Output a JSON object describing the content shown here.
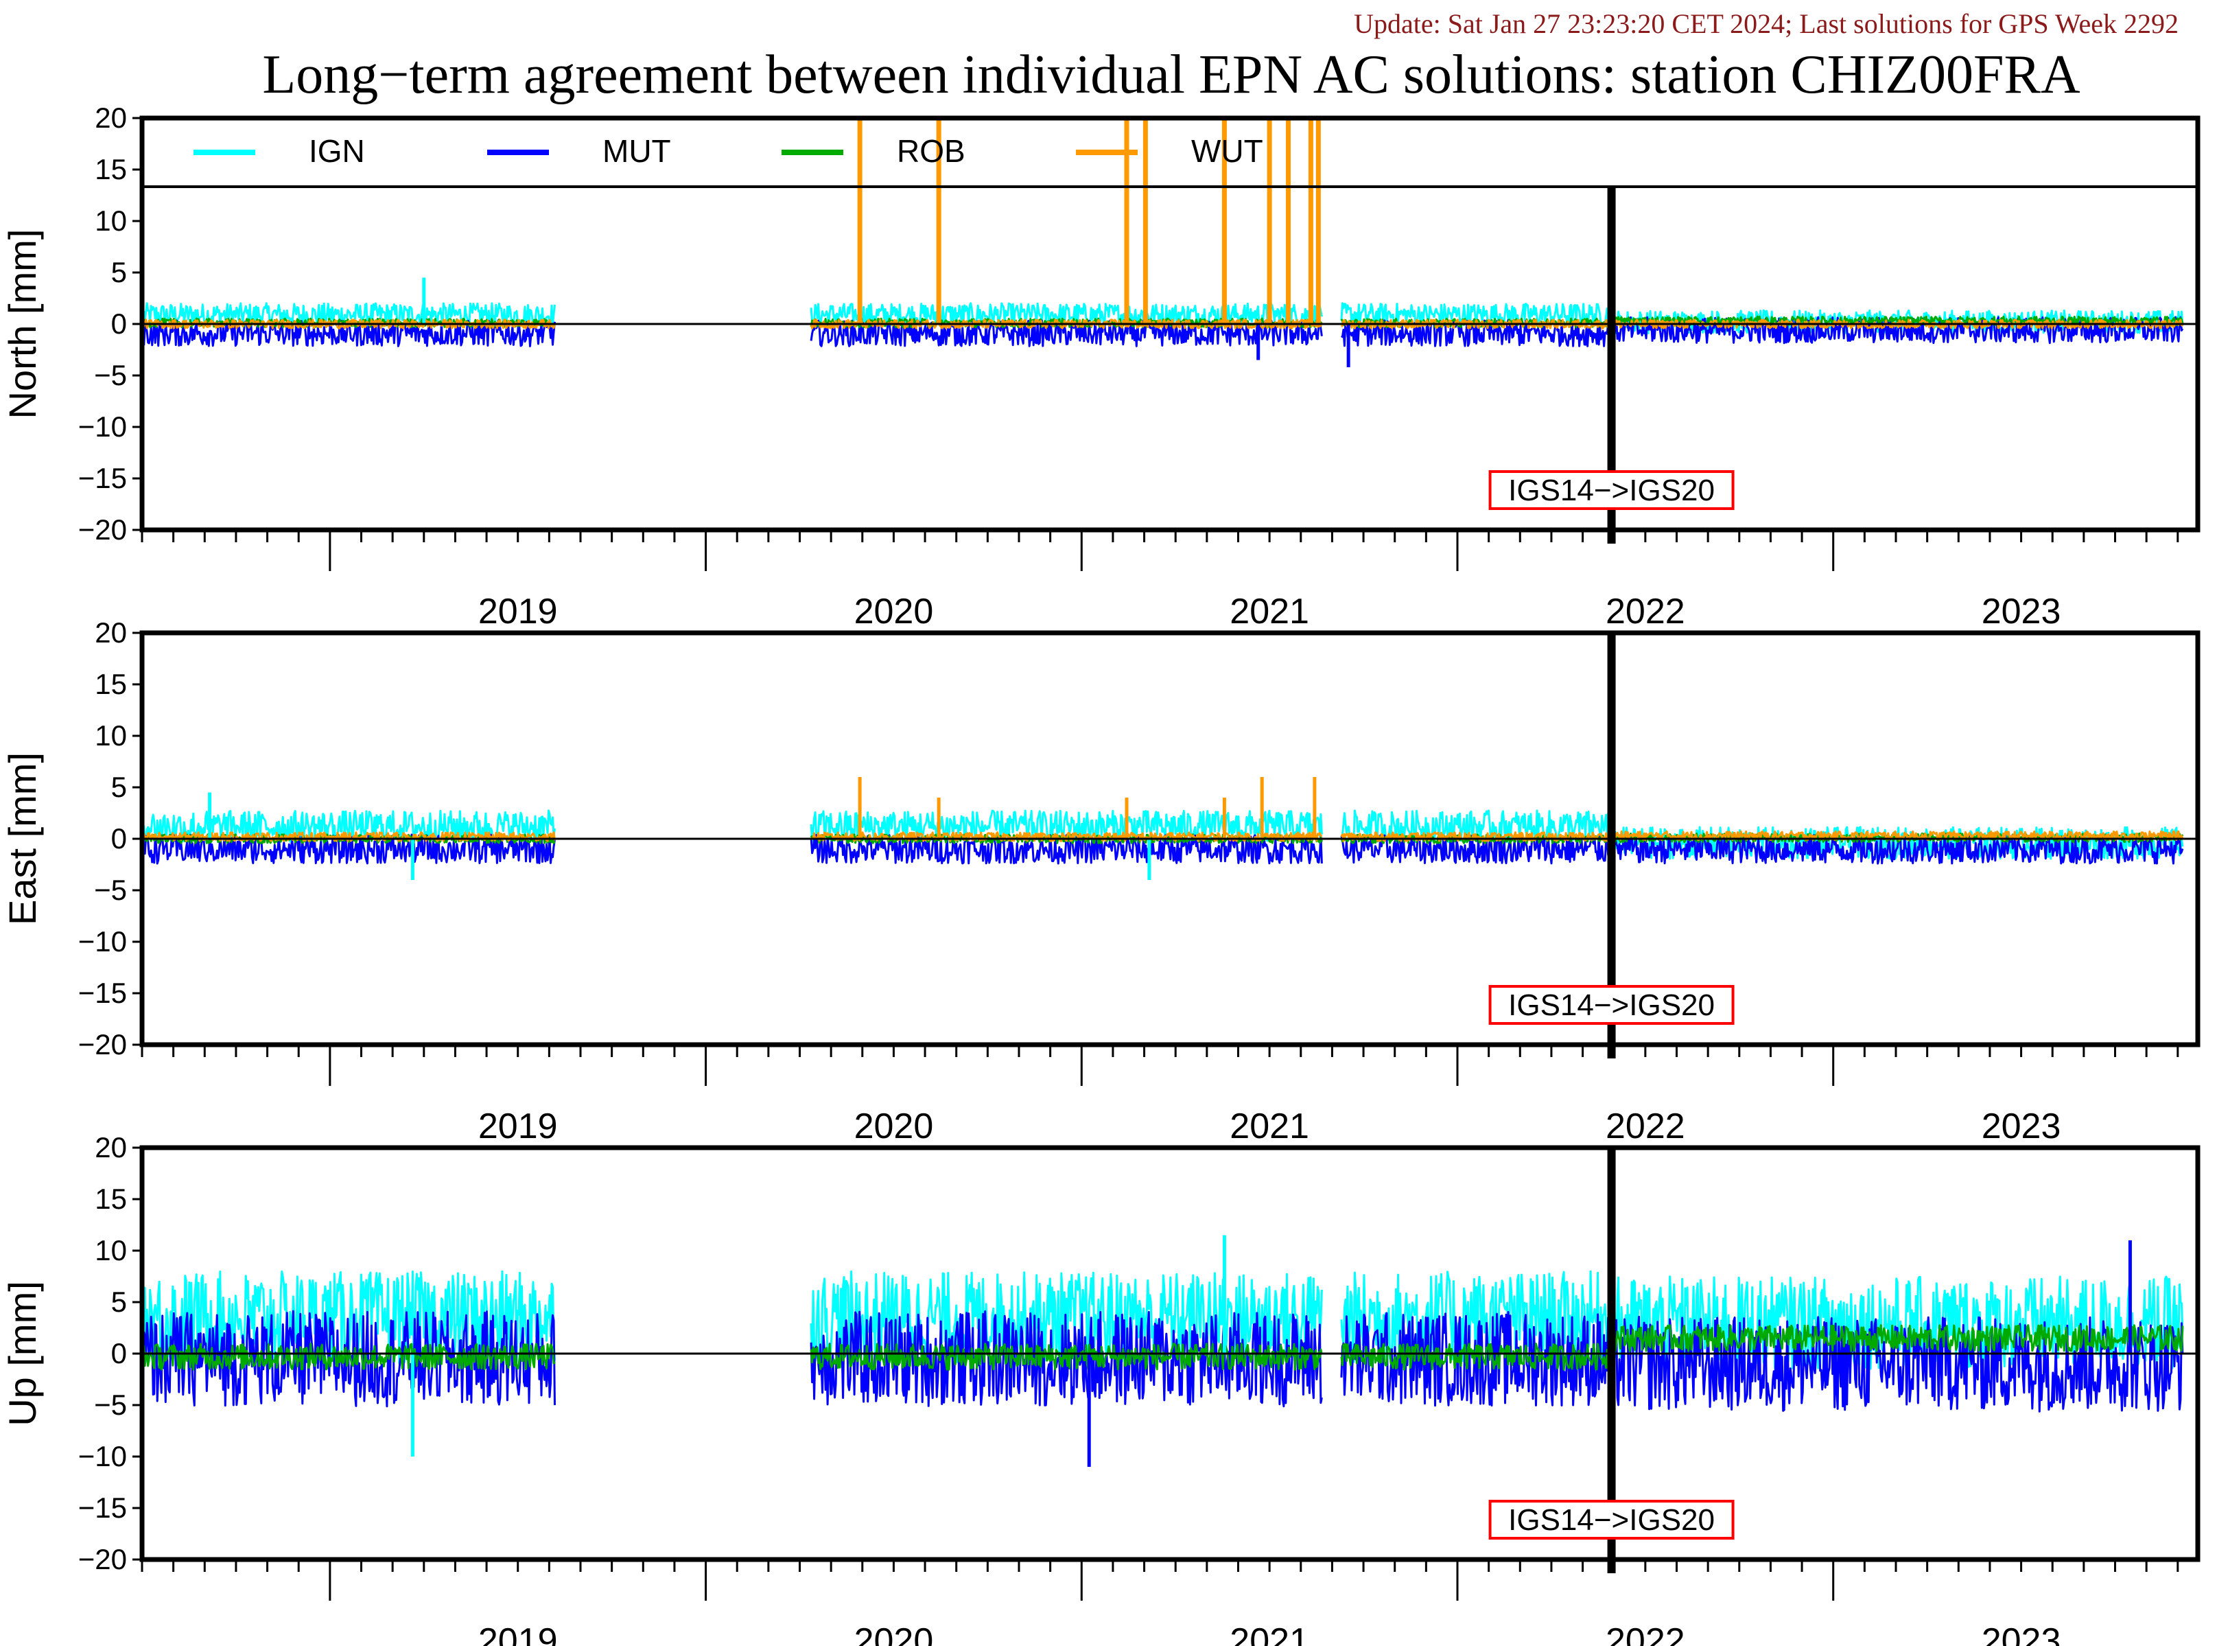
{
  "header": {
    "update": "Update: Sat Jan 27 23:23:20 CET 2024; Last solutions for GPS Week 2292",
    "update_color": "#8b1a1a",
    "title": "Long−term agreement between individual EPN AC solutions: station CHIZ00FRA"
  },
  "chart_data": {
    "type": "line",
    "x_axis": {
      "range": [
        2018.5,
        2023.97
      ],
      "year_labels": [
        "2019",
        "2020",
        "2021",
        "2022",
        "2023"
      ]
    },
    "legend": {
      "placement": "top-left inside north panel",
      "entries": [
        {
          "name": "IGN",
          "color": "#00ffff"
        },
        {
          "name": "MUT",
          "color": "#0000ff"
        },
        {
          "name": "ROB",
          "color": "#00aa00"
        },
        {
          "name": "WUT",
          "color": "#ff9900"
        }
      ]
    },
    "reference_change": {
      "label": "IGS14−>IGS20",
      "label_color": "#ff0000",
      "epoch": 2022.41
    },
    "data_gaps": [
      [
        2019.6,
        2020.28
      ],
      [
        2021.64,
        2021.69
      ]
    ],
    "panels": [
      {
        "ylabel": "North [mm]",
        "ylim": [
          -20,
          20
        ],
        "yticks": [
          "20",
          "15",
          "10",
          "5",
          "0",
          "−5",
          "−10",
          "−15",
          "−20"
        ],
        "series": [
          {
            "name": "IGN",
            "offset": 0.9,
            "noise": 0.8,
            "offset_after": 0.2
          },
          {
            "name": "MUT",
            "offset": -0.9,
            "noise": 0.9,
            "offset_after": -0.6
          },
          {
            "name": "ROB",
            "offset": 0.1,
            "noise": 0.3,
            "offset_after": 0.3
          },
          {
            "name": "WUT",
            "offset": 0.0,
            "noise": 0.3,
            "offset_after": 0.0
          }
        ],
        "spikes": [
          {
            "series": "WUT",
            "x": 2020.41,
            "y": 20
          },
          {
            "series": "WUT",
            "x": 2020.62,
            "y": 20
          },
          {
            "series": "WUT",
            "x": 2021.12,
            "y": 20
          },
          {
            "series": "WUT",
            "x": 2021.17,
            "y": 20
          },
          {
            "series": "WUT",
            "x": 2021.38,
            "y": 20
          },
          {
            "series": "WUT",
            "x": 2021.5,
            "y": 20
          },
          {
            "series": "WUT",
            "x": 2021.55,
            "y": 20
          },
          {
            "series": "WUT",
            "x": 2021.61,
            "y": 20
          },
          {
            "series": "WUT",
            "x": 2021.63,
            "y": 20
          },
          {
            "series": "IGN",
            "x": 2019.25,
            "y": 4.5
          },
          {
            "series": "MUT",
            "x": 2021.47,
            "y": -3.5
          },
          {
            "series": "MUT",
            "x": 2021.71,
            "y": -4.2
          }
        ]
      },
      {
        "ylabel": "East [mm]",
        "ylim": [
          -20,
          20
        ],
        "yticks": [
          "20",
          "15",
          "10",
          "5",
          "0",
          "−5",
          "−10",
          "−15",
          "−20"
        ],
        "series": [
          {
            "name": "IGN",
            "offset": 1.2,
            "noise": 1.1,
            "offset_after": -0.4
          },
          {
            "name": "MUT",
            "offset": -1.0,
            "noise": 1.0,
            "offset_after": -1.0
          },
          {
            "name": "ROB",
            "offset": 0.0,
            "noise": 0.3,
            "offset_after": 0.1
          },
          {
            "name": "WUT",
            "offset": 0.2,
            "noise": 0.3,
            "offset_after": 0.3
          }
        ],
        "spikes": [
          {
            "series": "WUT",
            "x": 2020.41,
            "y": 6
          },
          {
            "series": "WUT",
            "x": 2020.62,
            "y": 4
          },
          {
            "series": "WUT",
            "x": 2021.12,
            "y": 4
          },
          {
            "series": "WUT",
            "x": 2021.38,
            "y": 4
          },
          {
            "series": "WUT",
            "x": 2021.48,
            "y": 6
          },
          {
            "series": "WUT",
            "x": 2021.62,
            "y": 6
          },
          {
            "series": "IGN",
            "x": 2018.68,
            "y": 4.5
          },
          {
            "series": "IGN",
            "x": 2019.22,
            "y": -4
          },
          {
            "series": "IGN",
            "x": 2021.18,
            "y": -4
          }
        ]
      },
      {
        "ylabel": "Up [mm]",
        "ylim": [
          -20,
          20
        ],
        "yticks": [
          "20",
          "15",
          "10",
          "5",
          "0",
          "−5",
          "−10",
          "−15",
          "−20"
        ],
        "series": [
          {
            "name": "IGN",
            "offset": 3.5,
            "noise": 3.2,
            "offset_after": 3.0
          },
          {
            "name": "MUT",
            "offset": -0.5,
            "noise": 3.3,
            "offset_after": -1.0
          },
          {
            "name": "ROB",
            "offset": -0.3,
            "noise": 0.9,
            "offset_after": 1.5
          },
          {
            "name": "WUT",
            "offset": 0.0,
            "noise": 0.0,
            "offset_after": 0.0
          }
        ],
        "spikes": [
          {
            "series": "IGN",
            "x": 2021.38,
            "y": 11.5
          },
          {
            "series": "MUT",
            "x": 2021.02,
            "y": -11
          },
          {
            "series": "MUT",
            "x": 2023.79,
            "y": 11
          },
          {
            "series": "IGN",
            "x": 2019.22,
            "y": -10
          }
        ]
      }
    ]
  }
}
